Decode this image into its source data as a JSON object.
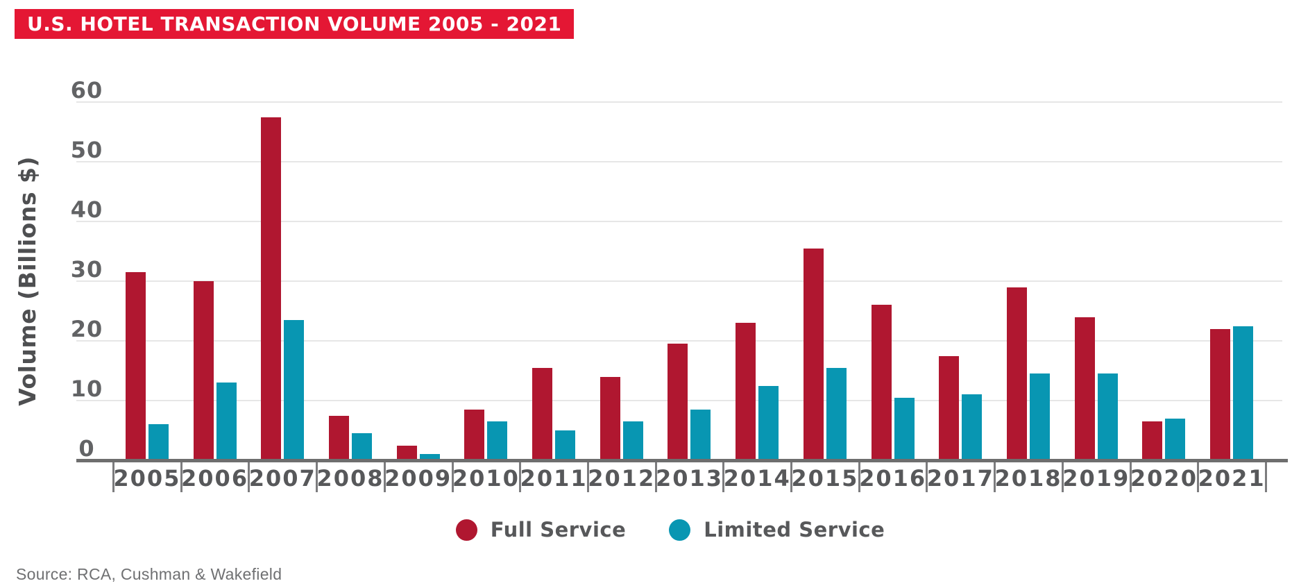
{
  "title": {
    "text": "U.S. HOTEL TRANSACTION VOLUME 2005 - 2021"
  },
  "source": "Source: RCA, Cushman & Wakefield",
  "colors": {
    "banner_red": "#E41734",
    "full_service_red": "#B01730",
    "limited_service_teal": "#0896B2",
    "gridline_gray": "#E6E6E6",
    "axis_gray": "#6E6E6E",
    "label_gray": "#57585A",
    "title_text_white": "#FFFFFF"
  },
  "legend": {
    "items": [
      {
        "label": "Full Service",
        "color": "#B01730"
      },
      {
        "label": "Limited Service",
        "color": "#0896B2"
      }
    ]
  },
  "chart_data": {
    "type": "bar",
    "title": "U.S. HOTEL TRANSACTION VOLUME 2005 - 2021",
    "xlabel": "",
    "ylabel": "Volume (Billions $)",
    "ylim": [
      0,
      60
    ],
    "yticks": [
      0,
      10,
      20,
      30,
      40,
      50,
      60
    ],
    "grid": true,
    "legend_position": "bottom",
    "categories": [
      "2005",
      "2006",
      "2007",
      "2008",
      "2009",
      "2010",
      "2011",
      "2012",
      "2013",
      "2014",
      "2015",
      "2016",
      "2017",
      "2018",
      "2019",
      "2020",
      "2021"
    ],
    "series": [
      {
        "name": "Full Service",
        "color": "#B01730",
        "values": [
          31.5,
          30,
          57.5,
          7.5,
          2.5,
          8.5,
          15.5,
          14,
          19.5,
          23,
          35.5,
          26,
          17.5,
          29,
          24,
          6.5,
          22
        ]
      },
      {
        "name": "Limited Service",
        "color": "#0896B2",
        "values": [
          6,
          13,
          23.5,
          4.5,
          1,
          6.5,
          5,
          6.5,
          8.5,
          12.5,
          15.5,
          10.5,
          11,
          14.5,
          14.5,
          7,
          22.5
        ]
      }
    ]
  }
}
